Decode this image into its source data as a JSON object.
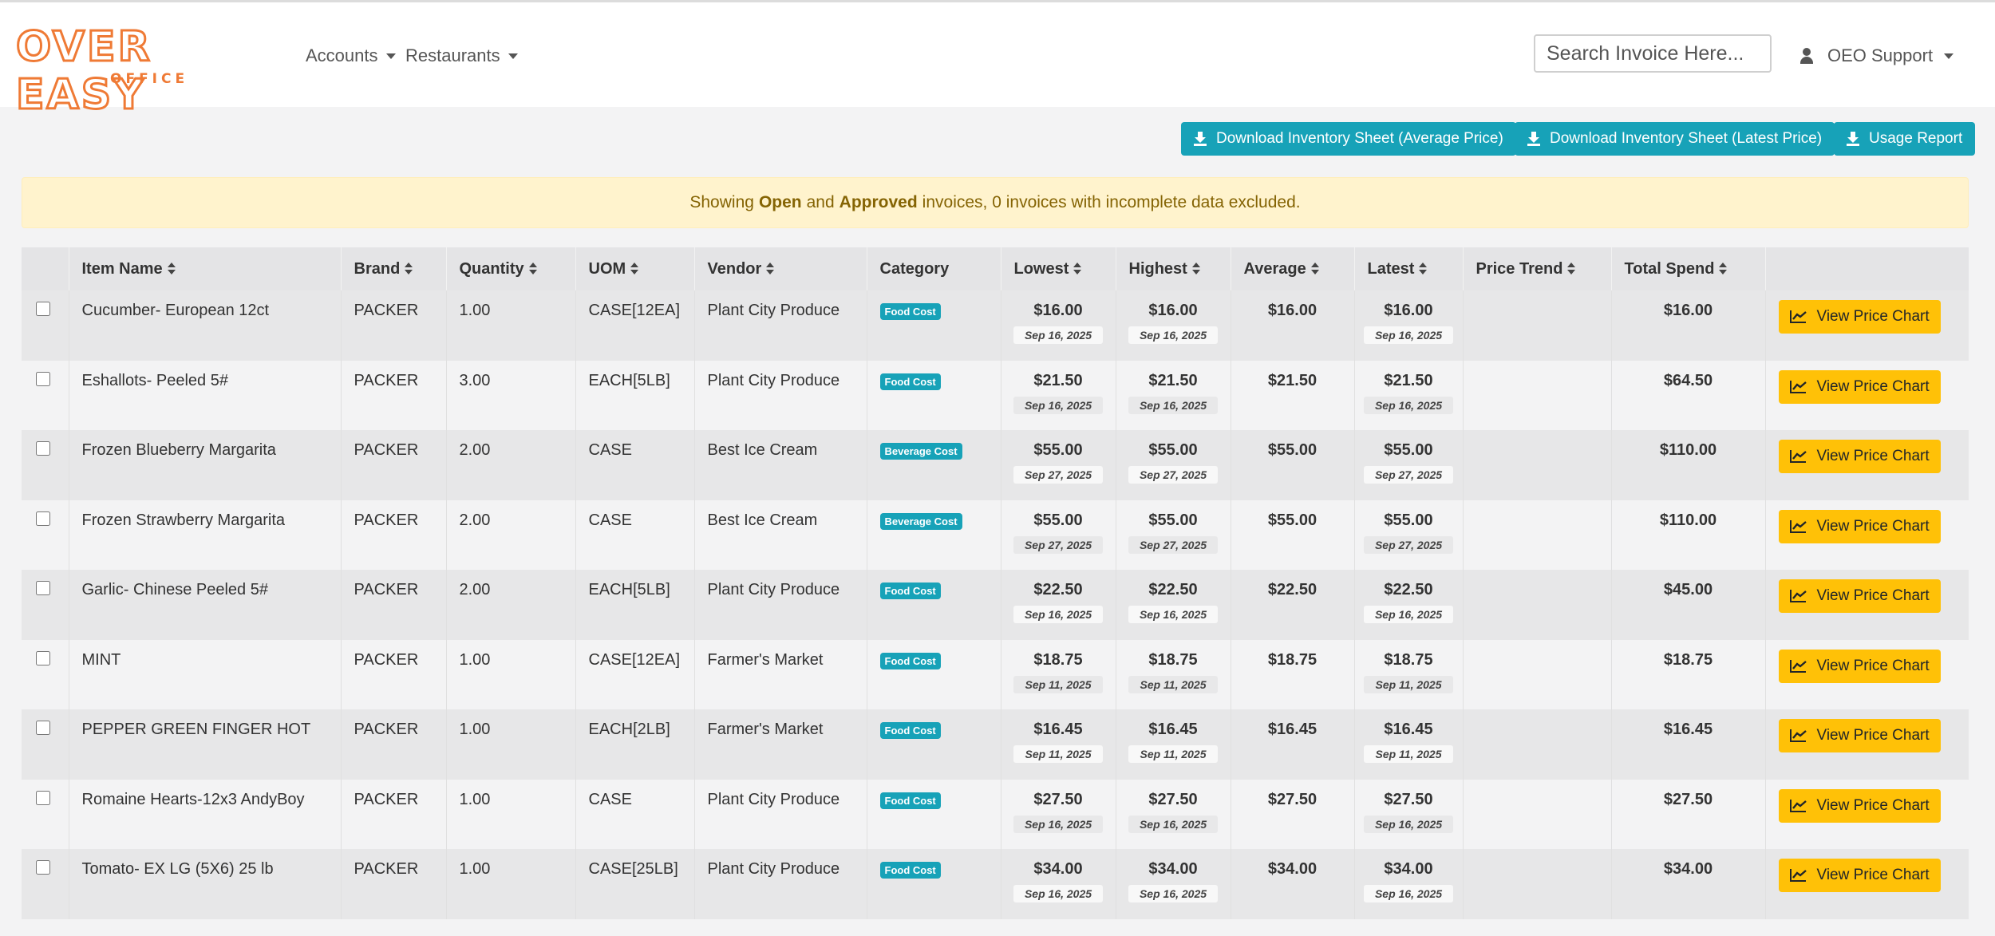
{
  "brand": {
    "name": "OVER EASY",
    "sub": "OFFICE"
  },
  "nav": {
    "accounts": "Accounts",
    "restaurants": "Restaurants"
  },
  "search": {
    "placeholder": "Search Invoice Here..."
  },
  "user": {
    "name": "OEO Support"
  },
  "actions": {
    "download_avg": "Download Inventory Sheet (Average Price)",
    "download_latest": "Download Inventory Sheet (Latest Price)",
    "usage": "Usage Report"
  },
  "alert": {
    "prefix": "Showing",
    "open": "Open",
    "and": "and",
    "approved": "Approved",
    "suffix": "invoices, 0 invoices with incomplete data excluded."
  },
  "columns": {
    "item": "Item Name",
    "brand": "Brand",
    "qty": "Quantity",
    "uom": "UOM",
    "vendor": "Vendor",
    "category": "Category",
    "lowest": "Lowest",
    "highest": "Highest",
    "average": "Average",
    "latest": "Latest",
    "trend": "Price Trend",
    "spend": "Total Spend"
  },
  "rows": [
    {
      "item": "Cucumber- European 12ct",
      "brand": "PACKER",
      "qty": "1.00",
      "uom": "CASE[12EA]",
      "vendor": "Plant City Produce",
      "category": "Food Cost",
      "lowest": "$16.00",
      "lowest_date": "Sep 16, 2025",
      "highest": "$16.00",
      "highest_date": "Sep 16, 2025",
      "average": "$16.00",
      "latest": "$16.00",
      "latest_date": "Sep 16, 2025",
      "spend": "$16.00",
      "button": "View Price Chart"
    },
    {
      "item": "Eshallots- Peeled 5#",
      "brand": "PACKER",
      "qty": "3.00",
      "uom": "EACH[5LB]",
      "vendor": "Plant City Produce",
      "category": "Food Cost",
      "lowest": "$21.50",
      "lowest_date": "Sep 16, 2025",
      "highest": "$21.50",
      "highest_date": "Sep 16, 2025",
      "average": "$21.50",
      "latest": "$21.50",
      "latest_date": "Sep 16, 2025",
      "spend": "$64.50",
      "button": "View Price Chart"
    },
    {
      "item": "Frozen Blueberry Margarita",
      "brand": "PACKER",
      "qty": "2.00",
      "uom": "CASE",
      "vendor": "Best Ice Cream",
      "category": "Beverage Cost",
      "lowest": "$55.00",
      "lowest_date": "Sep 27, 2025",
      "highest": "$55.00",
      "highest_date": "Sep 27, 2025",
      "average": "$55.00",
      "latest": "$55.00",
      "latest_date": "Sep 27, 2025",
      "spend": "$110.00",
      "button": "View Price Chart"
    },
    {
      "item": "Frozen Strawberry Margarita",
      "brand": "PACKER",
      "qty": "2.00",
      "uom": "CASE",
      "vendor": "Best Ice Cream",
      "category": "Beverage Cost",
      "lowest": "$55.00",
      "lowest_date": "Sep 27, 2025",
      "highest": "$55.00",
      "highest_date": "Sep 27, 2025",
      "average": "$55.00",
      "latest": "$55.00",
      "latest_date": "Sep 27, 2025",
      "spend": "$110.00",
      "button": "View Price Chart"
    },
    {
      "item": "Garlic- Chinese Peeled 5#",
      "brand": "PACKER",
      "qty": "2.00",
      "uom": "EACH[5LB]",
      "vendor": "Plant City Produce",
      "category": "Food Cost",
      "lowest": "$22.50",
      "lowest_date": "Sep 16, 2025",
      "highest": "$22.50",
      "highest_date": "Sep 16, 2025",
      "average": "$22.50",
      "latest": "$22.50",
      "latest_date": "Sep 16, 2025",
      "spend": "$45.00",
      "button": "View Price Chart"
    },
    {
      "item": "MINT",
      "brand": "PACKER",
      "qty": "1.00",
      "uom": "CASE[12EA]",
      "vendor": "Farmer's Market",
      "category": "Food Cost",
      "lowest": "$18.75",
      "lowest_date": "Sep 11, 2025",
      "highest": "$18.75",
      "highest_date": "Sep 11, 2025",
      "average": "$18.75",
      "latest": "$18.75",
      "latest_date": "Sep 11, 2025",
      "spend": "$18.75",
      "button": "View Price Chart"
    },
    {
      "item": "PEPPER GREEN FINGER HOT",
      "brand": "PACKER",
      "qty": "1.00",
      "uom": "EACH[2LB]",
      "vendor": "Farmer's Market",
      "category": "Food Cost",
      "lowest": "$16.45",
      "lowest_date": "Sep 11, 2025",
      "highest": "$16.45",
      "highest_date": "Sep 11, 2025",
      "average": "$16.45",
      "latest": "$16.45",
      "latest_date": "Sep 11, 2025",
      "spend": "$16.45",
      "button": "View Price Chart"
    },
    {
      "item": "Romaine Hearts-12x3 AndyBoy",
      "brand": "PACKER",
      "qty": "1.00",
      "uom": "CASE",
      "vendor": "Plant City Produce",
      "category": "Food Cost",
      "lowest": "$27.50",
      "lowest_date": "Sep 16, 2025",
      "highest": "$27.50",
      "highest_date": "Sep 16, 2025",
      "average": "$27.50",
      "latest": "$27.50",
      "latest_date": "Sep 16, 2025",
      "spend": "$27.50",
      "button": "View Price Chart"
    },
    {
      "item": "Tomato- EX LG (5X6) 25 lb",
      "brand": "PACKER",
      "qty": "1.00",
      "uom": "CASE[25LB]",
      "vendor": "Plant City Produce",
      "category": "Food Cost",
      "lowest": "$34.00",
      "lowest_date": "Sep 16, 2025",
      "highest": "$34.00",
      "highest_date": "Sep 16, 2025",
      "average": "$34.00",
      "latest": "$34.00",
      "latest_date": "Sep 16, 2025",
      "spend": "$34.00",
      "button": "View Price Chart"
    }
  ],
  "colors": {
    "accent": "#ef7a35",
    "info": "#17a2b8",
    "warning": "#ffc107",
    "alert_bg": "#fff3cd",
    "alert_text": "#856404"
  }
}
